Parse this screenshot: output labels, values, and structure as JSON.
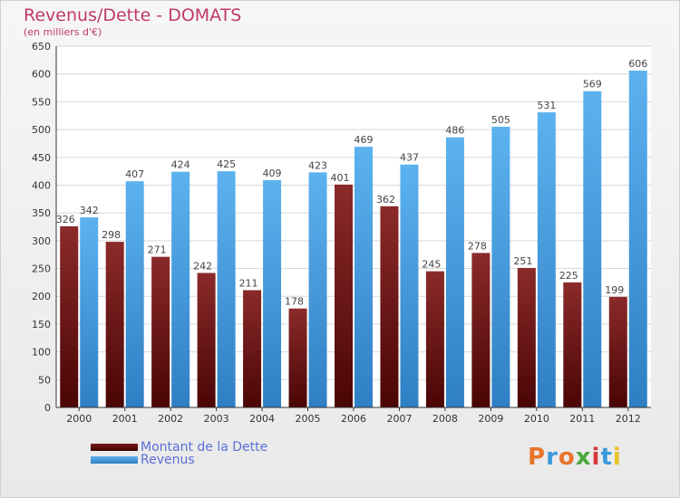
{
  "header": {
    "title": "Revenus/Dette - DOMATS",
    "subtitle": "(en milliers d'€)"
  },
  "legend": {
    "debt_label": "Montant de la Dette",
    "revenue_label": "Revenus"
  },
  "logo": {
    "text": "Proxiti"
  },
  "colors": {
    "debt": "#7a1a1a",
    "revenue": "#4ea7e6",
    "title": "#c0396b",
    "legend_text": "#5a6fd6"
  },
  "chart_data": {
    "type": "bar",
    "title": "Revenus/Dette - DOMATS",
    "subtitle": "(en milliers d'€)",
    "categories": [
      "2000",
      "2001",
      "2002",
      "2003",
      "2004",
      "2005",
      "2006",
      "2007",
      "2008",
      "2009",
      "2010",
      "2011",
      "2012"
    ],
    "series": [
      {
        "name": "Montant de la Dette",
        "values": [
          326,
          298,
          271,
          242,
          211,
          178,
          401,
          362,
          245,
          278,
          251,
          225,
          199
        ]
      },
      {
        "name": "Revenus",
        "values": [
          342,
          407,
          424,
          425,
          409,
          423,
          469,
          437,
          486,
          505,
          531,
          569,
          606
        ]
      }
    ],
    "ylim": [
      0,
      650
    ],
    "yticks": [
      0,
      50,
      100,
      150,
      200,
      250,
      300,
      350,
      400,
      450,
      500,
      550,
      600,
      650
    ],
    "grid": true,
    "legend_position": "bottom-left"
  }
}
